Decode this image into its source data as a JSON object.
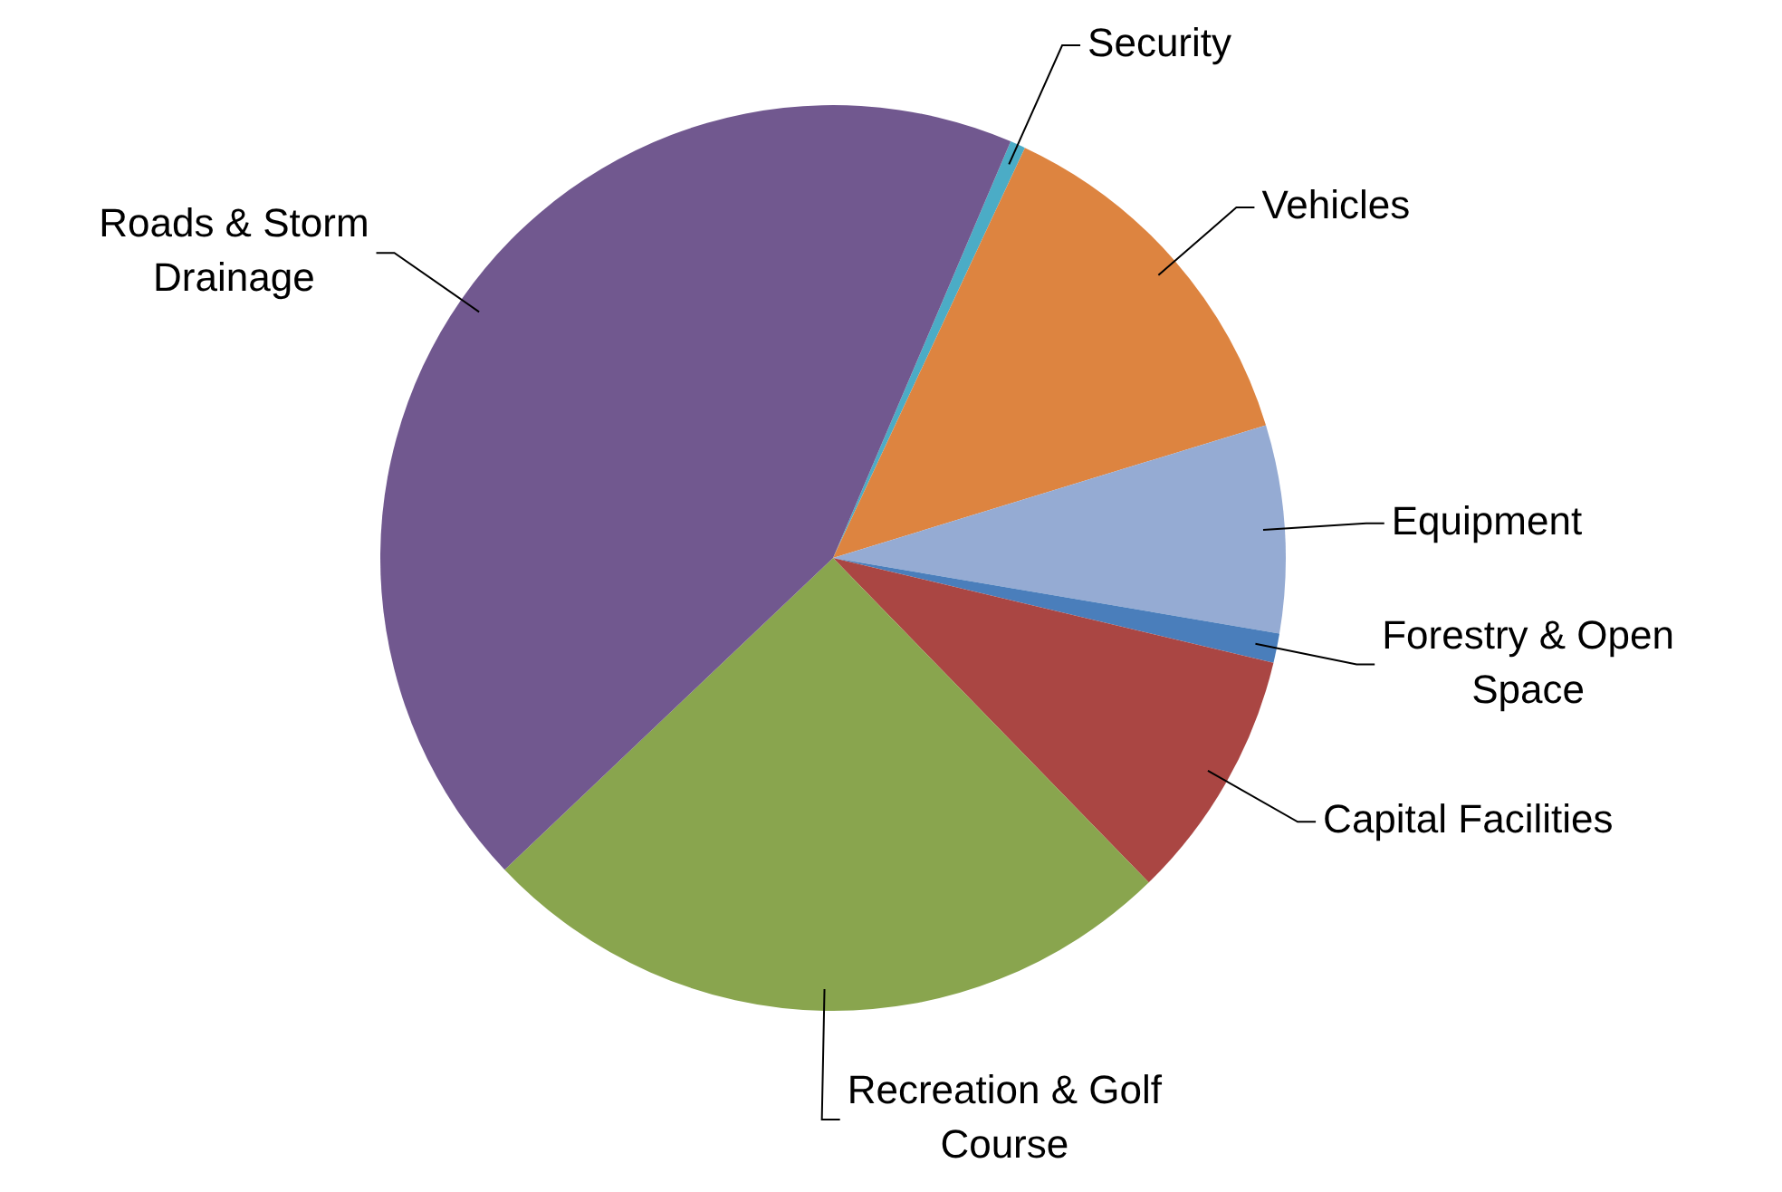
{
  "chart_data": {
    "type": "pie",
    "categories": [
      "Security",
      "Vehicles",
      "Equipment",
      "Forestry & Open Space",
      "Capital Facilities",
      "Recreation & Golf Course",
      "Roads & Storm Drainage"
    ],
    "values": [
      0.55,
      13.3,
      7.4,
      1.05,
      9.0,
      25.2,
      43.5
    ],
    "colors": [
      "#4bacc6",
      "#dd8440",
      "#95abd3",
      "#4a7ebb",
      "#aa4643",
      "#89a54e",
      "#71588f"
    ],
    "legend": false
  }
}
